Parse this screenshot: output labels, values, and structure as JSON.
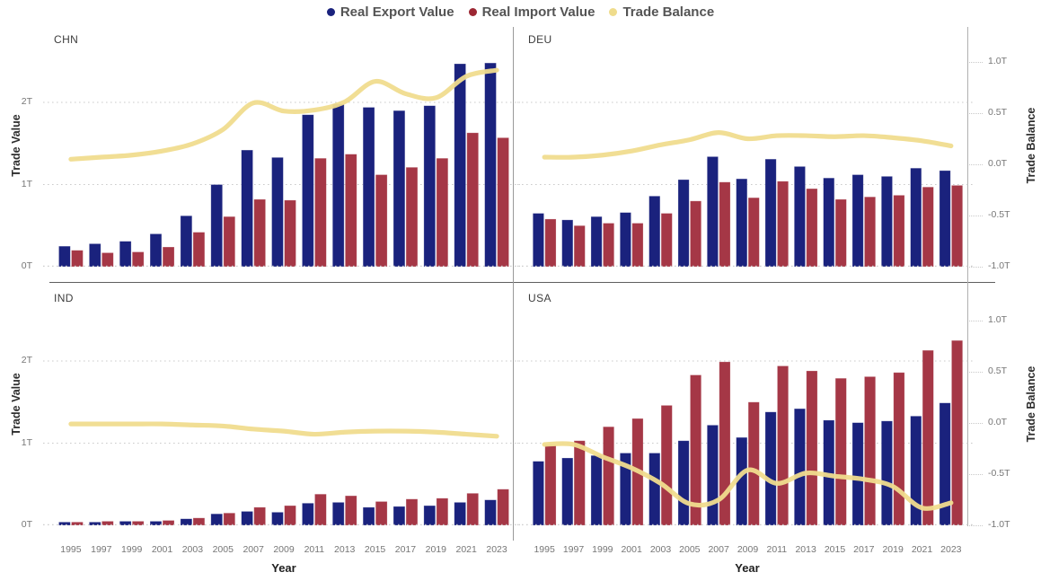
{
  "legend": [
    {
      "label": "Real Export Value",
      "color": "#1A227D"
    },
    {
      "label": "Real Import Value",
      "color": "#9C2733"
    },
    {
      "label": "Trade Balance",
      "color": "#EFDC8C"
    }
  ],
  "colors": {
    "export": "#1A227D",
    "import": "#A53746",
    "balance": "#F0DC8E",
    "gridline": "#cbcbcb",
    "baseline": "#cccccc"
  },
  "chart_data": {
    "type": "bar",
    "layout": "2x2 facet grid, bars on left axis, smoothed balance line on right axis",
    "x_label": "Year",
    "x": [
      1995,
      1997,
      1999,
      2001,
      2003,
      2005,
      2007,
      2009,
      2011,
      2013,
      2015,
      2017,
      2019,
      2021,
      2023
    ],
    "left_axis": {
      "title": "Trade Value",
      "ticks": [
        "0T",
        "1T",
        "2T"
      ],
      "tick_values": [
        0,
        1,
        2
      ],
      "range": [
        0,
        2.92
      ]
    },
    "right_axis": {
      "title": "Trade Balance",
      "ticks": [
        "1.0T",
        "0.5T",
        "0.0T",
        "-0.5T",
        "-1.0T"
      ],
      "tick_values": [
        1,
        0.5,
        0,
        -0.5,
        -1
      ],
      "range": [
        -1.0,
        1.34
      ]
    },
    "series_meta": [
      {
        "name": "Real Export Value",
        "type": "bar",
        "axis": "left",
        "color_key": "export"
      },
      {
        "name": "Real Import Value",
        "type": "bar",
        "axis": "left",
        "color_key": "import"
      },
      {
        "name": "Trade Balance",
        "type": "line",
        "axis": "right",
        "color_key": "balance"
      }
    ],
    "facets": [
      {
        "code": "CHN",
        "export": [
          0.25,
          0.28,
          0.31,
          0.4,
          0.62,
          1.0,
          1.42,
          1.33,
          1.85,
          1.98,
          1.94,
          1.9,
          1.96,
          2.47,
          2.48
        ],
        "import": [
          0.2,
          0.17,
          0.18,
          0.24,
          0.42,
          0.61,
          0.82,
          0.81,
          1.32,
          1.37,
          1.12,
          1.21,
          1.32,
          1.63,
          1.57
        ],
        "balance": [
          0.05,
          0.07,
          0.09,
          0.13,
          0.2,
          0.34,
          0.6,
          0.52,
          0.53,
          0.61,
          0.81,
          0.69,
          0.65,
          0.86,
          0.92
        ]
      },
      {
        "code": "DEU",
        "export": [
          0.65,
          0.57,
          0.61,
          0.66,
          0.86,
          1.06,
          1.34,
          1.07,
          1.31,
          1.22,
          1.08,
          1.12,
          1.1,
          1.2,
          1.17
        ],
        "import": [
          0.58,
          0.5,
          0.53,
          0.53,
          0.65,
          0.8,
          1.03,
          0.84,
          1.04,
          0.95,
          0.82,
          0.85,
          0.87,
          0.97,
          0.99
        ],
        "balance": [
          0.07,
          0.07,
          0.09,
          0.13,
          0.19,
          0.24,
          0.31,
          0.25,
          0.28,
          0.28,
          0.27,
          0.28,
          0.26,
          0.23,
          0.18
        ]
      },
      {
        "code": "IND",
        "export": [
          0.04,
          0.04,
          0.05,
          0.05,
          0.08,
          0.14,
          0.17,
          0.16,
          0.27,
          0.28,
          0.22,
          0.23,
          0.24,
          0.28,
          0.31
        ],
        "import": [
          0.04,
          0.05,
          0.05,
          0.06,
          0.09,
          0.15,
          0.22,
          0.24,
          0.38,
          0.36,
          0.29,
          0.32,
          0.33,
          0.39,
          0.44
        ],
        "balance": [
          -0.01,
          -0.01,
          -0.01,
          -0.01,
          -0.02,
          -0.03,
          -0.06,
          -0.08,
          -0.11,
          -0.09,
          -0.08,
          -0.08,
          -0.09,
          -0.11,
          -0.13
        ]
      },
      {
        "code": "USA",
        "export": [
          0.78,
          0.82,
          0.85,
          0.88,
          0.88,
          1.03,
          1.22,
          1.07,
          1.38,
          1.42,
          1.28,
          1.25,
          1.27,
          1.33,
          1.49
        ],
        "import": [
          0.98,
          1.03,
          1.2,
          1.3,
          1.46,
          1.83,
          1.99,
          1.5,
          1.94,
          1.88,
          1.79,
          1.81,
          1.86,
          2.13,
          2.25
        ],
        "balance": [
          -0.21,
          -0.21,
          -0.33,
          -0.44,
          -0.59,
          -0.79,
          -0.75,
          -0.46,
          -0.59,
          -0.49,
          -0.52,
          -0.55,
          -0.62,
          -0.83,
          -0.78
        ]
      }
    ]
  }
}
